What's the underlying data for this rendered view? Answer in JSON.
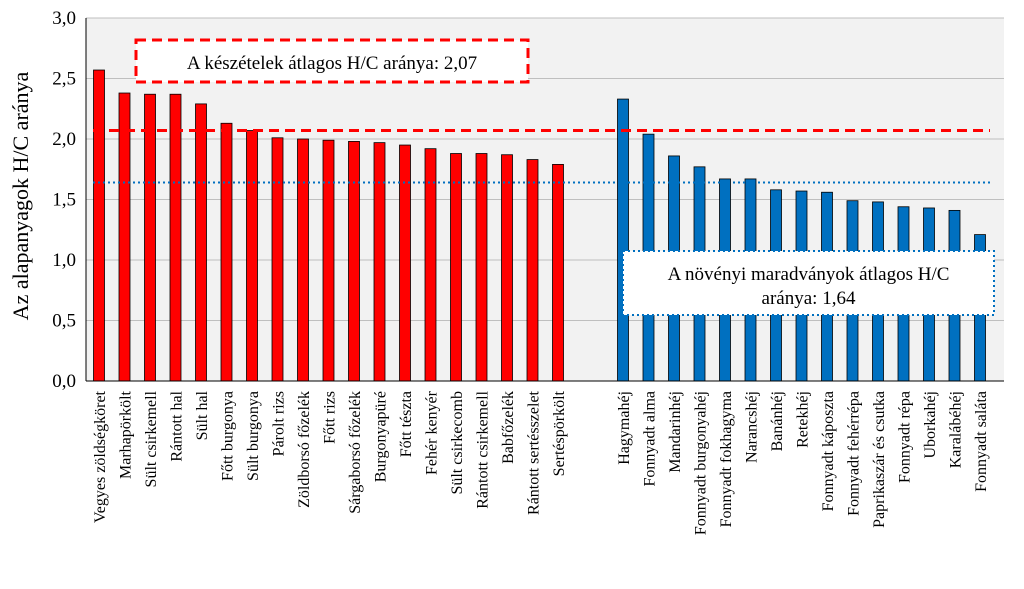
{
  "chart_data": {
    "type": "bar",
    "ylabel": "Az alapanyagok H/C aránya",
    "xlabel": "",
    "ylim": [
      0,
      3.0
    ],
    "yticks": [
      "0,0",
      "0,5",
      "1,0",
      "1,5",
      "2,0",
      "2,5",
      "3,0"
    ],
    "grid": "horizontal",
    "groups": [
      {
        "color": "#ff0000",
        "categories": [
          "Vegyes zöldségköret",
          "Marhapörkölt",
          "Sült csirkemell",
          "Rántott hal",
          "Sült hal",
          "Főtt burgonya",
          "Sült burgonya",
          "Párolt rizs",
          "Zöldborsó főzelék",
          "Főtt rizs",
          "Sárgaborsó főzelék",
          "Burgonyapüré",
          "Főtt tészta",
          "Fehér kenyér",
          "Sült csirkecomb",
          "Rántott csirkemell",
          "Babfőzelék",
          "Rántott sertésszelet",
          "Sertéspörkölt"
        ],
        "values": [
          2.57,
          2.38,
          2.37,
          2.37,
          2.29,
          2.13,
          2.07,
          2.01,
          2.0,
          1.99,
          1.98,
          1.97,
          1.95,
          1.92,
          1.88,
          1.88,
          1.87,
          1.83,
          1.79
        ]
      },
      {
        "color": "#0070c0",
        "categories": [
          "Hagymahéj",
          "Fonnyadt alma",
          "Mandarinhéj",
          "Fonnyadt burgonyahéj",
          "Fonnyadt fokhagyma",
          "Narancshéj",
          "Banánhéj",
          "Retekhéj",
          "Fonnyadt káposzta",
          "Fonnyadt fehérrépa",
          "Paprikaszár és csutka",
          "Fonnyadt répa",
          "Uborkahéj",
          "Karalábéhéj",
          "Fonnyadt saláta"
        ],
        "values": [
          2.33,
          2.04,
          1.86,
          1.77,
          1.67,
          1.67,
          1.58,
          1.57,
          1.56,
          1.49,
          1.48,
          1.44,
          1.43,
          1.41,
          1.21
        ]
      }
    ],
    "reference_lines": [
      {
        "value": 2.07,
        "color": "#ff0000",
        "style": "dashed"
      },
      {
        "value": 1.64,
        "color": "#0070c0",
        "style": "dotted"
      }
    ],
    "annotations": [
      {
        "text_lines": [
          "A készételek átlagos H/C aránya: 2,07"
        ],
        "color": "#ff0000",
        "style": "dashed"
      },
      {
        "text_lines": [
          "A növényi maradványok átlagos H/C",
          "aránya: 1,64"
        ],
        "color": "#0070c0",
        "style": "dotted"
      }
    ]
  }
}
